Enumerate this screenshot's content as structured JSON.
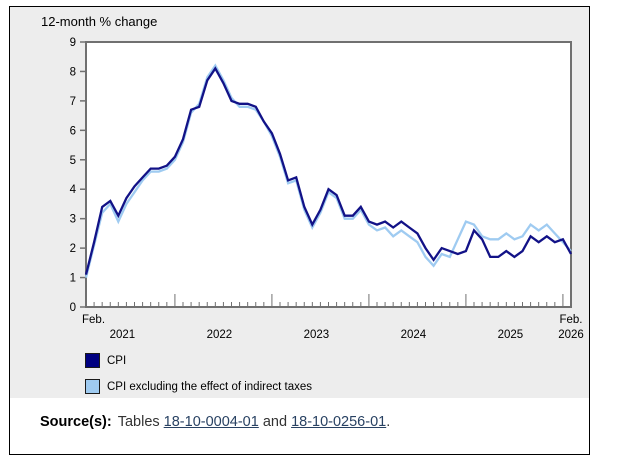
{
  "figure": {
    "title": "12-month % change"
  },
  "chart_data": {
    "type": "line",
    "title": "12-month % change",
    "x_start": "Feb 2021",
    "x_end": "Feb 2026",
    "months_count": 61,
    "ylim": [
      0,
      9
    ],
    "yticks": [
      0,
      1,
      2,
      3,
      4,
      5,
      6,
      7,
      8,
      9
    ],
    "grid": false,
    "x_axis": {
      "start_month_label": "Feb.",
      "end_month_label": "Feb.",
      "year_labels": [
        "2021",
        "2022",
        "2023",
        "2024",
        "2025",
        "2026"
      ],
      "year_center_index": [
        4.5,
        16.5,
        28.5,
        40.5,
        52.5,
        60
      ],
      "major_tick_indices": [
        11,
        23,
        35,
        47,
        59
      ]
    },
    "series": [
      {
        "name": "CPI",
        "color": "#121287",
        "values": [
          1.1,
          2.2,
          3.4,
          3.6,
          3.1,
          3.7,
          4.1,
          4.4,
          4.7,
          4.7,
          4.8,
          5.1,
          5.7,
          6.7,
          6.8,
          7.7,
          8.1,
          7.6,
          7.0,
          6.9,
          6.9,
          6.8,
          6.3,
          5.9,
          5.2,
          4.3,
          4.4,
          3.4,
          2.8,
          3.3,
          4.0,
          3.8,
          3.1,
          3.1,
          3.4,
          2.9,
          2.8,
          2.9,
          2.7,
          2.9,
          2.7,
          2.5,
          2.0,
          1.6,
          2.0,
          1.9,
          1.8,
          1.9,
          2.6,
          2.3,
          1.7,
          1.7,
          1.9,
          1.7,
          1.9,
          2.4,
          2.2,
          2.4,
          2.2,
          2.3,
          1.8
        ]
      },
      {
        "name": "CPI excluding the effect of indirect taxes",
        "color": "#9fcbf1",
        "values": [
          1.0,
          2.1,
          3.2,
          3.5,
          2.9,
          3.5,
          3.9,
          4.3,
          4.6,
          4.6,
          4.7,
          5.0,
          5.6,
          6.6,
          6.9,
          7.8,
          8.2,
          7.7,
          7.1,
          6.8,
          6.8,
          6.7,
          6.3,
          5.8,
          5.1,
          4.2,
          4.3,
          3.3,
          2.7,
          3.2,
          3.9,
          3.7,
          3.0,
          3.0,
          3.3,
          2.8,
          2.6,
          2.7,
          2.4,
          2.6,
          2.4,
          2.2,
          1.7,
          1.4,
          1.8,
          1.7,
          2.3,
          2.9,
          2.8,
          2.4,
          2.3,
          2.3,
          2.5,
          2.3,
          2.4,
          2.8,
          2.6,
          2.8,
          2.5,
          2.2,
          1.9
        ]
      }
    ],
    "legend_position": "bottom-left"
  },
  "legend": {
    "items": [
      {
        "label": "CPI",
        "color": "#000080"
      },
      {
        "label": "CPI excluding the effect of indirect taxes",
        "color": "#9fcbf1"
      }
    ]
  },
  "source": {
    "label": "Source(s):",
    "prefix": "Tables",
    "link1": "18-10-0004-01",
    "separator": "and",
    "link2": "18-10-0256-01",
    "suffix": "."
  },
  "colors": {
    "axis": "#707070",
    "plot_background": "#ffffff",
    "figure_background": "#ededed",
    "link": "#284162",
    "cpi_line": "#121287",
    "cpi_excl_line": "#9fcbf1"
  }
}
